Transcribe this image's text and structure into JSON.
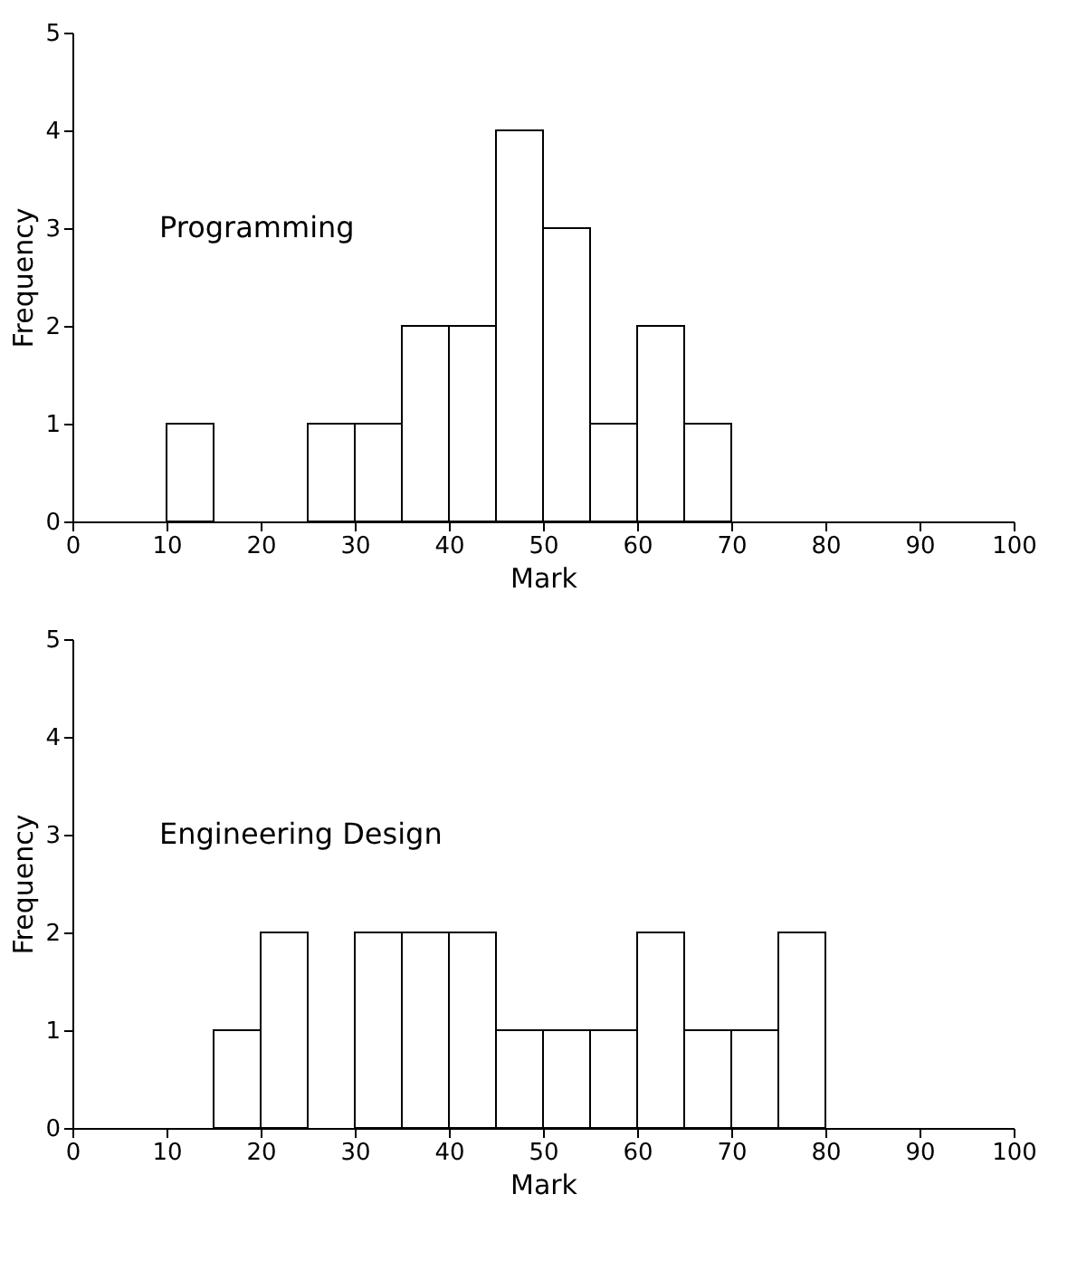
{
  "chart_data": [
    {
      "type": "histogram",
      "xlabel": "Mark",
      "ylabel": "Frequency",
      "annotations": [
        "Programming"
      ],
      "bins": [
        0,
        5,
        10,
        15,
        20,
        25,
        30,
        35,
        40,
        45,
        50,
        55,
        60,
        65,
        70,
        75,
        80,
        85,
        90,
        95,
        100
      ],
      "values": [
        0,
        0,
        1,
        0,
        0,
        1,
        1,
        2,
        2,
        4,
        3,
        1,
        2,
        1,
        0,
        0,
        0,
        0,
        0,
        0
      ],
      "color": "#ffffff",
      "xlim": [
        0,
        100
      ],
      "ylim": [
        0,
        5
      ],
      "xticks": [
        0,
        10,
        20,
        30,
        40,
        50,
        60,
        70,
        80,
        90,
        100
      ],
      "yticks": [
        0,
        1,
        2,
        3,
        4,
        5
      ],
      "grid": false
    },
    {
      "type": "histogram",
      "xlabel": "Mark",
      "ylabel": "Frequency",
      "annotations": [
        "Engineering Design"
      ],
      "bins": [
        0,
        5,
        10,
        15,
        20,
        25,
        30,
        35,
        40,
        45,
        50,
        55,
        60,
        65,
        70,
        75,
        80,
        85,
        90,
        95,
        100
      ],
      "values": [
        0,
        0,
        0,
        1,
        2,
        0,
        2,
        2,
        2,
        1,
        1,
        1,
        2,
        1,
        1,
        2,
        0,
        0,
        0,
        0
      ],
      "color": "#ffffff",
      "xlim": [
        0,
        100
      ],
      "ylim": [
        0,
        5
      ],
      "xticks": [
        0,
        10,
        20,
        30,
        40,
        50,
        60,
        70,
        80,
        90,
        100
      ],
      "yticks": [
        0,
        1,
        2,
        3,
        4,
        5
      ],
      "grid": false
    }
  ]
}
